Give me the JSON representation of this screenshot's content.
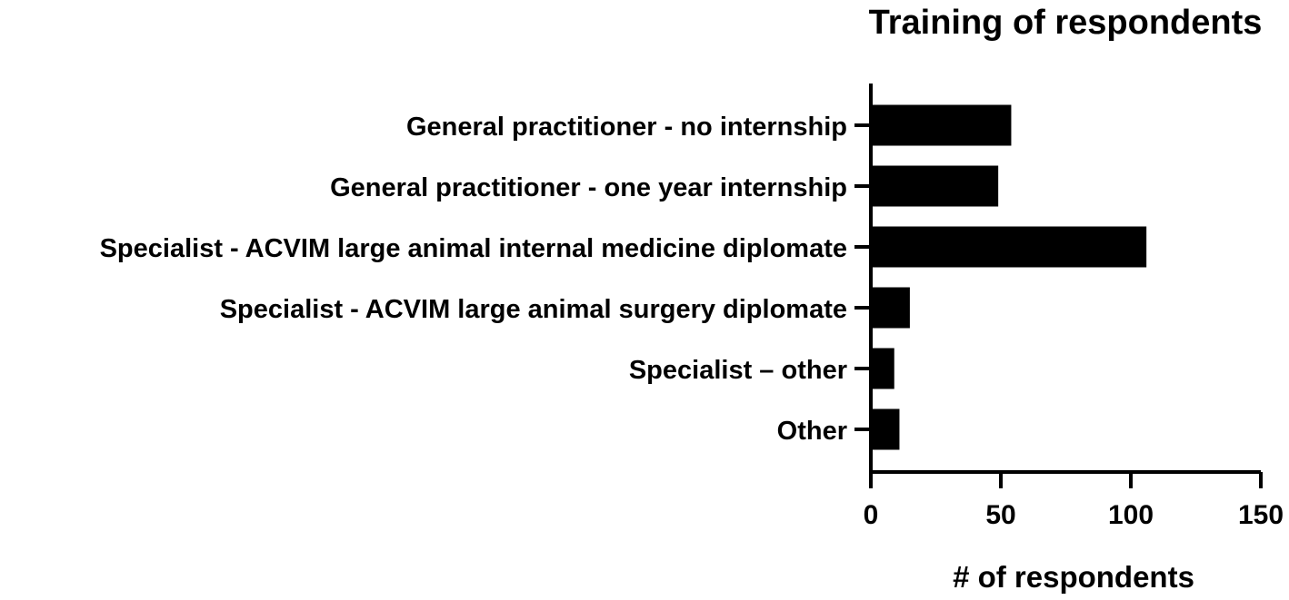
{
  "chart_data": {
    "type": "bar",
    "orientation": "horizontal",
    "title": "Training of respondents",
    "xlabel": "# of respondents",
    "ylabel": "",
    "categories": [
      "General practitioner - no internship",
      "General practitioner - one year internship",
      "Specialist - ACVIM large animal internal medicine diplomate",
      "Specialist - ACVIM large animal surgery diplomate",
      "Specialist – other",
      "Other"
    ],
    "values": [
      54,
      49,
      106,
      15,
      9,
      11
    ],
    "xlim": [
      0,
      150
    ],
    "xticks": [
      0,
      50,
      100,
      150
    ],
    "grid": false,
    "legend": "none",
    "bar_color": "#000000"
  }
}
